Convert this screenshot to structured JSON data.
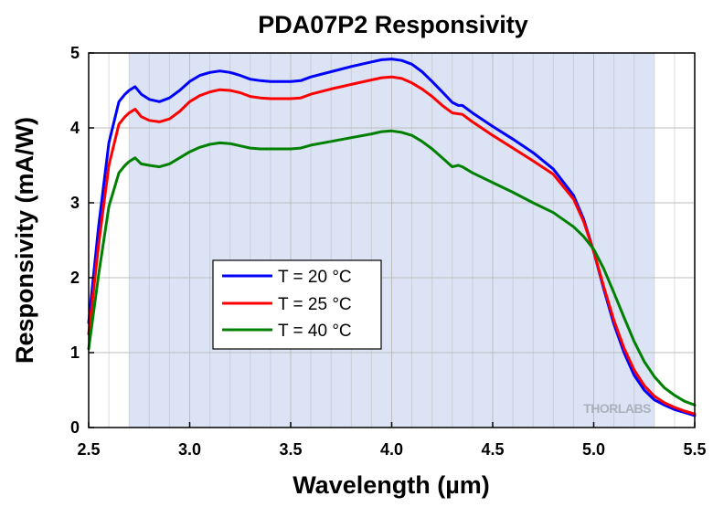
{
  "chart_data": {
    "type": "line",
    "title": "PDA07P2 Responsivity",
    "xlabel": "Wavelength (µm)",
    "ylabel": "Responsivity (mA/W)",
    "xlim": [
      2.5,
      5.5
    ],
    "ylim": [
      0,
      5
    ],
    "xticks": [
      "2.5",
      "3.0",
      "3.5",
      "4.0",
      "4.5",
      "5.0",
      "5.5"
    ],
    "yticks": [
      "0",
      "1",
      "2",
      "3",
      "4",
      "5"
    ],
    "grid": true,
    "legend_position": "center-left",
    "shaded_band": {
      "x_start": 2.7,
      "x_end": 5.3,
      "color": "#dbe3f4"
    },
    "watermark": "THORLABS",
    "series": [
      {
        "name": "T = 20 °C",
        "color": "#0000ff",
        "points": [
          [
            2.5,
            1.4
          ],
          [
            2.55,
            2.7
          ],
          [
            2.6,
            3.8
          ],
          [
            2.65,
            4.35
          ],
          [
            2.68,
            4.45
          ],
          [
            2.7,
            4.5
          ],
          [
            2.73,
            4.55
          ],
          [
            2.76,
            4.45
          ],
          [
            2.8,
            4.38
          ],
          [
            2.85,
            4.35
          ],
          [
            2.9,
            4.4
          ],
          [
            2.95,
            4.5
          ],
          [
            3.0,
            4.62
          ],
          [
            3.05,
            4.7
          ],
          [
            3.1,
            4.74
          ],
          [
            3.15,
            4.76
          ],
          [
            3.2,
            4.74
          ],
          [
            3.25,
            4.7
          ],
          [
            3.3,
            4.65
          ],
          [
            3.35,
            4.63
          ],
          [
            3.4,
            4.62
          ],
          [
            3.5,
            4.62
          ],
          [
            3.55,
            4.63
          ],
          [
            3.6,
            4.68
          ],
          [
            3.7,
            4.75
          ],
          [
            3.8,
            4.82
          ],
          [
            3.9,
            4.88
          ],
          [
            3.95,
            4.91
          ],
          [
            4.0,
            4.92
          ],
          [
            4.05,
            4.9
          ],
          [
            4.1,
            4.85
          ],
          [
            4.15,
            4.75
          ],
          [
            4.2,
            4.62
          ],
          [
            4.25,
            4.48
          ],
          [
            4.3,
            4.34
          ],
          [
            4.33,
            4.3
          ],
          [
            4.35,
            4.3
          ],
          [
            4.4,
            4.2
          ],
          [
            4.5,
            4.02
          ],
          [
            4.6,
            3.85
          ],
          [
            4.7,
            3.67
          ],
          [
            4.8,
            3.45
          ],
          [
            4.9,
            3.1
          ],
          [
            4.95,
            2.78
          ],
          [
            5.0,
            2.35
          ],
          [
            5.05,
            1.85
          ],
          [
            5.1,
            1.38
          ],
          [
            5.15,
            1.0
          ],
          [
            5.2,
            0.7
          ],
          [
            5.25,
            0.5
          ],
          [
            5.3,
            0.37
          ],
          [
            5.35,
            0.3
          ],
          [
            5.4,
            0.24
          ],
          [
            5.45,
            0.2
          ],
          [
            5.5,
            0.16
          ]
        ]
      },
      {
        "name": "T = 25 °C",
        "color": "#ff0000",
        "points": [
          [
            2.5,
            1.25
          ],
          [
            2.55,
            2.45
          ],
          [
            2.6,
            3.5
          ],
          [
            2.65,
            4.05
          ],
          [
            2.68,
            4.15
          ],
          [
            2.7,
            4.2
          ],
          [
            2.73,
            4.25
          ],
          [
            2.76,
            4.15
          ],
          [
            2.8,
            4.1
          ],
          [
            2.85,
            4.08
          ],
          [
            2.9,
            4.12
          ],
          [
            2.95,
            4.22
          ],
          [
            3.0,
            4.35
          ],
          [
            3.05,
            4.43
          ],
          [
            3.1,
            4.48
          ],
          [
            3.15,
            4.51
          ],
          [
            3.2,
            4.5
          ],
          [
            3.25,
            4.47
          ],
          [
            3.3,
            4.42
          ],
          [
            3.35,
            4.4
          ],
          [
            3.4,
            4.39
          ],
          [
            3.5,
            4.39
          ],
          [
            3.55,
            4.4
          ],
          [
            3.6,
            4.45
          ],
          [
            3.7,
            4.52
          ],
          [
            3.8,
            4.58
          ],
          [
            3.9,
            4.64
          ],
          [
            3.95,
            4.67
          ],
          [
            4.0,
            4.68
          ],
          [
            4.05,
            4.66
          ],
          [
            4.1,
            4.6
          ],
          [
            4.15,
            4.52
          ],
          [
            4.2,
            4.42
          ],
          [
            4.25,
            4.3
          ],
          [
            4.3,
            4.2
          ],
          [
            4.35,
            4.18
          ],
          [
            4.4,
            4.08
          ],
          [
            4.5,
            3.9
          ],
          [
            4.6,
            3.73
          ],
          [
            4.7,
            3.56
          ],
          [
            4.8,
            3.38
          ],
          [
            4.9,
            3.05
          ],
          [
            4.95,
            2.75
          ],
          [
            5.0,
            2.35
          ],
          [
            5.05,
            1.88
          ],
          [
            5.1,
            1.43
          ],
          [
            5.15,
            1.06
          ],
          [
            5.2,
            0.77
          ],
          [
            5.25,
            0.56
          ],
          [
            5.3,
            0.42
          ],
          [
            5.35,
            0.33
          ],
          [
            5.4,
            0.27
          ],
          [
            5.45,
            0.22
          ],
          [
            5.5,
            0.18
          ]
        ]
      },
      {
        "name": "T = 40 °C",
        "color": "#008000",
        "points": [
          [
            2.5,
            1.05
          ],
          [
            2.55,
            2.05
          ],
          [
            2.6,
            2.95
          ],
          [
            2.65,
            3.4
          ],
          [
            2.68,
            3.5
          ],
          [
            2.7,
            3.55
          ],
          [
            2.73,
            3.6
          ],
          [
            2.76,
            3.52
          ],
          [
            2.8,
            3.5
          ],
          [
            2.85,
            3.48
          ],
          [
            2.9,
            3.52
          ],
          [
            2.95,
            3.6
          ],
          [
            3.0,
            3.68
          ],
          [
            3.05,
            3.74
          ],
          [
            3.1,
            3.78
          ],
          [
            3.15,
            3.8
          ],
          [
            3.2,
            3.79
          ],
          [
            3.25,
            3.76
          ],
          [
            3.3,
            3.73
          ],
          [
            3.35,
            3.72
          ],
          [
            3.4,
            3.72
          ],
          [
            3.5,
            3.72
          ],
          [
            3.55,
            3.73
          ],
          [
            3.6,
            3.77
          ],
          [
            3.7,
            3.82
          ],
          [
            3.8,
            3.87
          ],
          [
            3.9,
            3.92
          ],
          [
            3.95,
            3.95
          ],
          [
            4.0,
            3.96
          ],
          [
            4.05,
            3.94
          ],
          [
            4.1,
            3.9
          ],
          [
            4.15,
            3.82
          ],
          [
            4.2,
            3.72
          ],
          [
            4.25,
            3.6
          ],
          [
            4.3,
            3.48
          ],
          [
            4.33,
            3.5
          ],
          [
            4.35,
            3.48
          ],
          [
            4.4,
            3.4
          ],
          [
            4.5,
            3.27
          ],
          [
            4.6,
            3.14
          ],
          [
            4.7,
            3.0
          ],
          [
            4.8,
            2.87
          ],
          [
            4.9,
            2.68
          ],
          [
            4.95,
            2.55
          ],
          [
            5.0,
            2.38
          ],
          [
            5.05,
            2.12
          ],
          [
            5.1,
            1.8
          ],
          [
            5.15,
            1.47
          ],
          [
            5.2,
            1.15
          ],
          [
            5.25,
            0.88
          ],
          [
            5.3,
            0.68
          ],
          [
            5.35,
            0.53
          ],
          [
            5.4,
            0.43
          ],
          [
            5.45,
            0.35
          ],
          [
            5.5,
            0.3
          ]
        ]
      }
    ]
  }
}
